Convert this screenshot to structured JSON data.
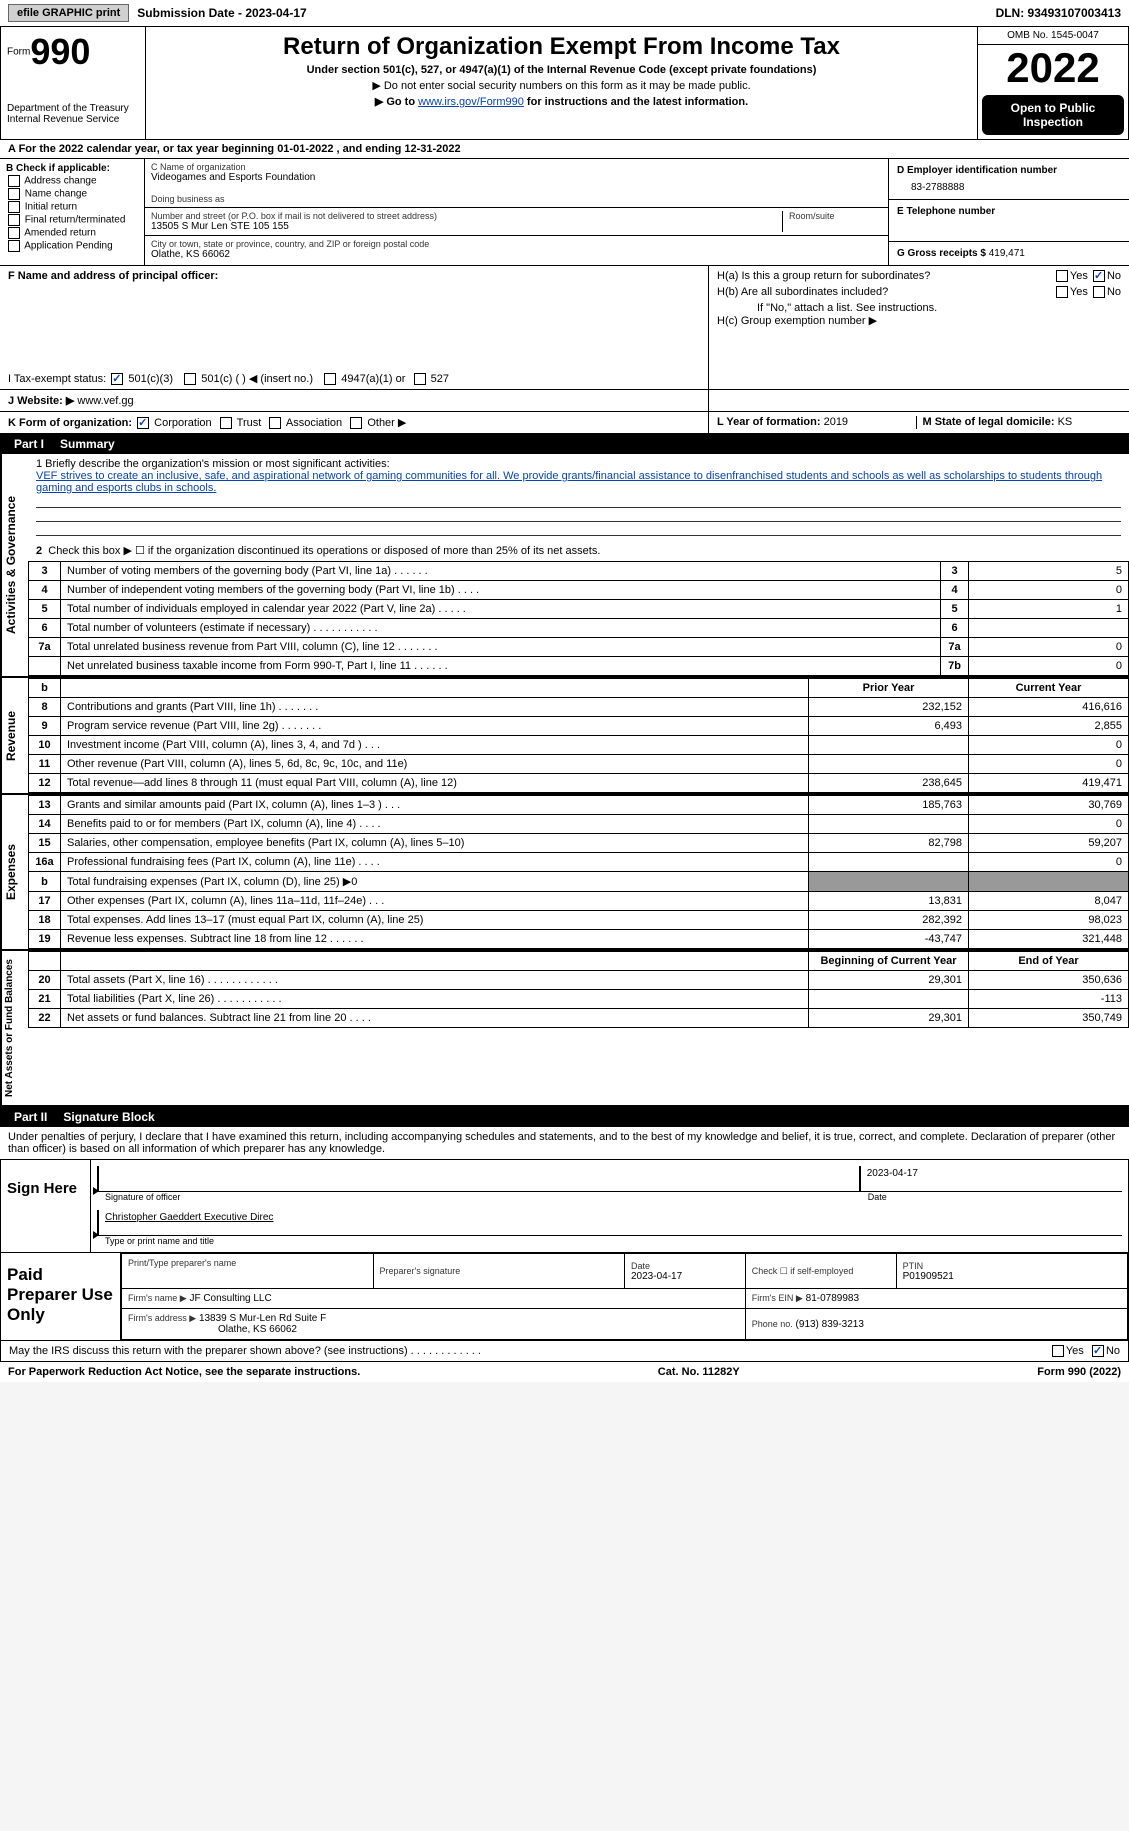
{
  "topbar": {
    "efile_label": "efile GRAPHIC print",
    "submission_label": "Submission Date - 2023-04-17",
    "dln": "DLN: 93493107003413"
  },
  "header": {
    "form_label": "Form",
    "form_number": "990",
    "dept": "Department of the Treasury Internal Revenue Service",
    "title": "Return of Organization Exempt From Income Tax",
    "sub1": "Under section 501(c), 527, or 4947(a)(1) of the Internal Revenue Code (except private foundations)",
    "sub2": "▶ Do not enter social security numbers on this form as it may be made public.",
    "sub3_pre": "▶ Go to ",
    "sub3_link": "www.irs.gov/Form990",
    "sub3_post": " for instructions and the latest information.",
    "omb": "OMB No. 1545-0047",
    "taxyear": "2022",
    "inspection": "Open to Public Inspection"
  },
  "lineA": "A For the 2022 calendar year, or tax year beginning 01-01-2022    , and ending 12-31-2022",
  "sectionB": {
    "header": "B Check if applicable:",
    "opts": [
      "Address change",
      "Name change",
      "Initial return",
      "Final return/terminated",
      "Amended return",
      "Application Pending"
    ]
  },
  "sectionC": {
    "c_label": "C Name of organization",
    "org_name": "Videogames and Esports Foundation",
    "dba_label": "Doing business as",
    "addr_label": "Number and street (or P.O. box if mail is not delivered to street address)",
    "addr": "13505 S Mur Len STE 105 155",
    "room_label": "Room/suite",
    "city_label": "City or town, state or province, country, and ZIP or foreign postal code",
    "city": "Olathe, KS  66062"
  },
  "sectionD": {
    "d_label": "D Employer identification number",
    "ein": "83-2788888",
    "e_label": "E Telephone number",
    "g_label": "G Gross receipts $",
    "g_val": "419,471"
  },
  "sectionF": {
    "f_label": "F Name and address of principal officer:"
  },
  "sectionH": {
    "ha": "H(a)  Is this a group return for subordinates?",
    "hb": "H(b)  Are all subordinates included?",
    "hb_note": "If \"No,\" attach a list. See instructions.",
    "hc": "H(c)  Group exemption number ▶",
    "yes": "Yes",
    "no": "No"
  },
  "sectionI": {
    "label": "I   Tax-exempt status:",
    "o501c3": "501(c)(3)",
    "o501c": "501(c) (  ) ◀ (insert no.)",
    "o4947": "4947(a)(1) or",
    "o527": "527"
  },
  "sectionJ": {
    "label": "J   Website: ▶",
    "val": "www.vef.gg"
  },
  "sectionK": {
    "label": "K Form of organization:",
    "corp": "Corporation",
    "trust": "Trust",
    "assoc": "Association",
    "other": "Other ▶"
  },
  "sectionL": {
    "label": "L Year of formation:",
    "val": "2019"
  },
  "sectionM": {
    "label": "M State of legal domicile:",
    "val": "KS"
  },
  "part1": {
    "hdr": "Part I",
    "title": "Summary",
    "q1_prompt": "1   Briefly describe the organization's mission or most significant activities:",
    "mission": "VEF strives to create an inclusive, safe, and aspirational network of gaming communities for all. We provide grants/financial assistance to disenfranchised students and schools as well as scholarships to students through gaming and esports clubs in schools.",
    "q2": "Check this box ▶ ☐ if the organization discontinued its operations or disposed of more than 25% of its net assets.",
    "rows_gov": [
      {
        "n": "3",
        "text": "Number of voting members of the governing body (Part VI, line 1a)   .    .    .    .    .    .",
        "k": "3",
        "v": "5"
      },
      {
        "n": "4",
        "text": "Number of independent voting members of the governing body (Part VI, line 1b)   .    .    .    .",
        "k": "4",
        "v": "0"
      },
      {
        "n": "5",
        "text": "Total number of individuals employed in calendar year 2022 (Part V, line 2a)   .    .    .    .    .",
        "k": "5",
        "v": "1"
      },
      {
        "n": "6",
        "text": "Total number of volunteers (estimate if necessary)   .    .    .    .    .    .    .    .    .    .    .",
        "k": "6",
        "v": ""
      },
      {
        "n": "7a",
        "text": "Total unrelated business revenue from Part VIII, column (C), line 12   .    .    .    .    .    .    .",
        "k": "7a",
        "v": "0"
      },
      {
        "n": "",
        "text": "Net unrelated business taxable income from Form 990-T, Part I, line 11   .    .    .    .    .    .",
        "k": "7b",
        "v": "0"
      }
    ],
    "hdr_b": "b",
    "col_prior": "Prior Year",
    "col_current": "Current Year",
    "rows_rev": [
      {
        "n": "8",
        "text": "Contributions and grants (Part VIII, line 1h)   .    .    .    .    .    .    .",
        "p": "232,152",
        "c": "416,616"
      },
      {
        "n": "9",
        "text": "Program service revenue (Part VIII, line 2g)   .    .    .    .    .    .    .",
        "p": "6,493",
        "c": "2,855"
      },
      {
        "n": "10",
        "text": "Investment income (Part VIII, column (A), lines 3, 4, and 7d )   .    .    .",
        "p": "",
        "c": "0"
      },
      {
        "n": "11",
        "text": "Other revenue (Part VIII, column (A), lines 5, 6d, 8c, 9c, 10c, and 11e)",
        "p": "",
        "c": "0"
      },
      {
        "n": "12",
        "text": "Total revenue—add lines 8 through 11 (must equal Part VIII, column (A), line 12)",
        "p": "238,645",
        "c": "419,471"
      }
    ],
    "rows_exp": [
      {
        "n": "13",
        "text": "Grants and similar amounts paid (Part IX, column (A), lines 1–3 )   .    .    .",
        "p": "185,763",
        "c": "30,769"
      },
      {
        "n": "14",
        "text": "Benefits paid to or for members (Part IX, column (A), line 4)   .    .    .    .",
        "p": "",
        "c": "0"
      },
      {
        "n": "15",
        "text": "Salaries, other compensation, employee benefits (Part IX, column (A), lines 5–10)",
        "p": "82,798",
        "c": "59,207"
      },
      {
        "n": "16a",
        "text": "Professional fundraising fees (Part IX, column (A), line 11e)   .    .    .    .",
        "p": "",
        "c": "0"
      },
      {
        "n": "b",
        "text": "Total fundraising expenses (Part IX, column (D), line 25) ▶0",
        "shaded": true
      },
      {
        "n": "17",
        "text": "Other expenses (Part IX, column (A), lines 11a–11d, 11f–24e)   .    .    .",
        "p": "13,831",
        "c": "8,047"
      },
      {
        "n": "18",
        "text": "Total expenses. Add lines 13–17 (must equal Part IX, column (A), line 25)",
        "p": "282,392",
        "c": "98,023"
      },
      {
        "n": "19",
        "text": "Revenue less expenses. Subtract line 18 from line 12   .    .    .    .    .    .",
        "p": "-43,747",
        "c": "321,448"
      }
    ],
    "col_begin": "Beginning of Current Year",
    "col_end": "End of Year",
    "rows_net": [
      {
        "n": "20",
        "text": "Total assets (Part X, line 16)   .    .    .    .    .    .    .    .    .    .    .    .",
        "p": "29,301",
        "c": "350,636"
      },
      {
        "n": "21",
        "text": "Total liabilities (Part X, line 26)   .    .    .    .    .    .    .    .    .    .    .",
        "p": "",
        "c": "-113"
      },
      {
        "n": "22",
        "text": "Net assets or fund balances. Subtract line 21 from line 20   .    .    .    .",
        "p": "29,301",
        "c": "350,749"
      }
    ],
    "label_gov": "Activities & Governance",
    "label_rev": "Revenue",
    "label_exp": "Expenses",
    "label_net": "Net Assets or Fund Balances"
  },
  "part2": {
    "hdr": "Part II",
    "title": "Signature Block",
    "penalties": "Under penalties of perjury, I declare that I have examined this return, including accompanying schedules and statements, and to the best of my knowledge and belief, it is true, correct, and complete. Declaration of preparer (other than officer) is based on all information of which preparer has any knowledge.",
    "sign_here": "Sign Here",
    "sig_officer": "Signature of officer",
    "sig_date": "2023-04-17",
    "date_label": "Date",
    "name": "Christopher Gaeddert  Executive Direc",
    "name_label": "Type or print name and title",
    "paid_label": "Paid Preparer Use Only",
    "col_prep_name": "Print/Type preparer's name",
    "col_prep_sig": "Preparer's signature",
    "col_prep_date": "Date",
    "prep_date": "2023-04-17",
    "col_check": "Check ☐ if self-employed",
    "col_ptin": "PTIN",
    "ptin": "P01909521",
    "firm_name_label": "Firm's name    ▶",
    "firm_name": "JF Consulting LLC",
    "firm_ein_label": "Firm's EIN ▶",
    "firm_ein": "81-0789983",
    "firm_addr_label": "Firm's address ▶",
    "firm_addr": "13839 S Mur-Len Rd Suite F",
    "firm_city": "Olathe, KS  66062",
    "phone_label": "Phone no.",
    "phone": "(913) 839-3213"
  },
  "discuss": {
    "text": "May the IRS discuss this return with the preparer shown above? (see instructions)   .    .    .    .    .    .    .    .    .    .    .    .",
    "yes": "Yes",
    "no": "No"
  },
  "footer": {
    "notice": "For Paperwork Reduction Act Notice, see the separate instructions.",
    "cat": "Cat. No. 11282Y",
    "form": "Form 990 (2022)"
  },
  "colors": {
    "link": "#0645ad",
    "black": "#000000",
    "shaded": "#999999"
  }
}
